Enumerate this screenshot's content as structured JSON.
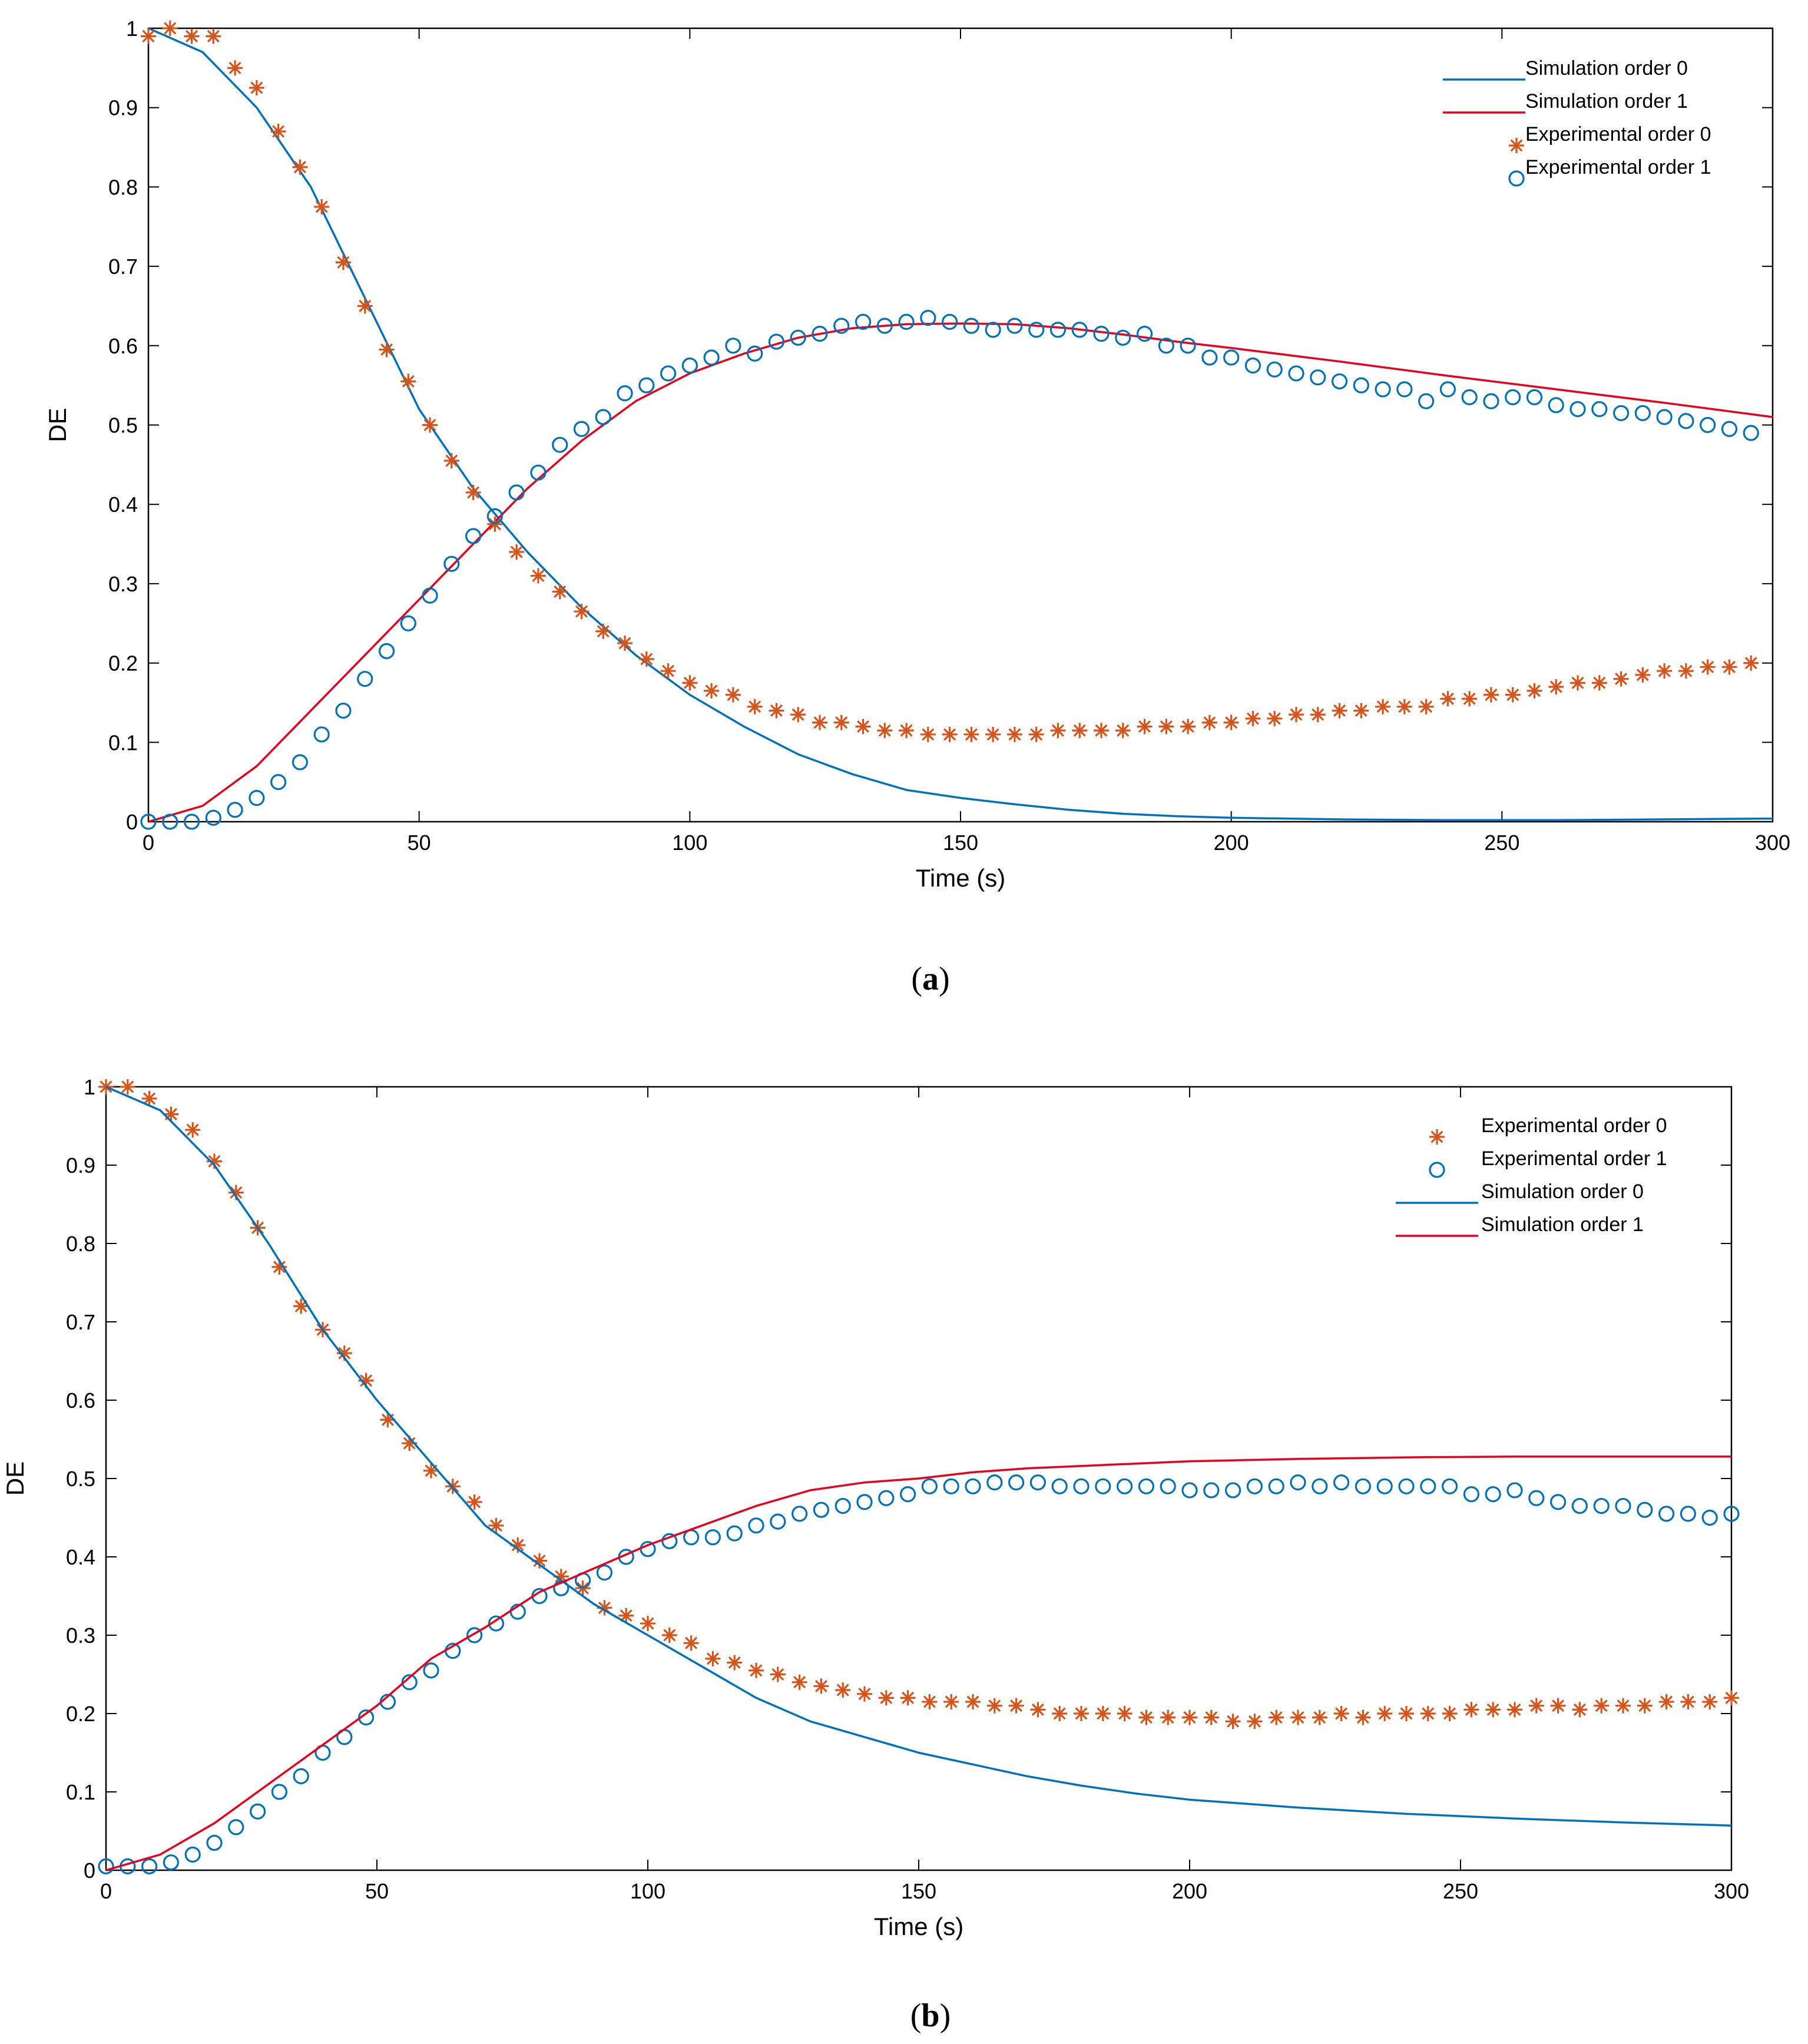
{
  "chart_data": [
    {
      "type": "line",
      "panel": "a",
      "xlabel": "Time (s)",
      "ylabel": "DE",
      "xlim": [
        0,
        300
      ],
      "ylim": [
        0,
        1
      ],
      "xticks": [
        0,
        50,
        100,
        150,
        200,
        250,
        300
      ],
      "yticks": [
        0,
        0.1,
        0.2,
        0.3,
        0.4,
        0.5,
        0.6,
        0.7,
        0.8,
        0.9,
        1
      ],
      "legend_position": "top-right",
      "legend": [
        "Simulation order 0",
        "Simulation order 1",
        "Experimental order 0",
        "Experimental order 1"
      ],
      "series": [
        {
          "name": "Simulation order 0",
          "style": "line",
          "color": "#0072BD",
          "x": [
            0,
            10,
            20,
            30,
            40,
            50,
            60,
            70,
            80,
            90,
            100,
            110,
            120,
            130,
            140,
            150,
            160,
            170,
            180,
            190,
            200,
            220,
            240,
            260,
            280,
            300
          ],
          "y": [
            1.0,
            0.97,
            0.9,
            0.8,
            0.66,
            0.52,
            0.42,
            0.34,
            0.27,
            0.21,
            0.16,
            0.12,
            0.085,
            0.06,
            0.04,
            0.03,
            0.022,
            0.015,
            0.01,
            0.007,
            0.005,
            0.003,
            0.002,
            0.002,
            0.003,
            0.004
          ]
        },
        {
          "name": "Simulation order 1",
          "style": "line",
          "color": "#E8001C",
          "x": [
            0,
            10,
            20,
            30,
            40,
            50,
            60,
            70,
            80,
            90,
            100,
            110,
            120,
            130,
            140,
            150,
            160,
            170,
            180,
            190,
            200,
            220,
            240,
            260,
            280,
            300
          ],
          "y": [
            0.0,
            0.02,
            0.07,
            0.14,
            0.21,
            0.28,
            0.35,
            0.42,
            0.48,
            0.53,
            0.565,
            0.59,
            0.61,
            0.622,
            0.627,
            0.628,
            0.627,
            0.622,
            0.614,
            0.605,
            0.597,
            0.58,
            0.562,
            0.545,
            0.528,
            0.51
          ]
        },
        {
          "name": "Experimental order 0",
          "style": "asterisk",
          "color": "#D95319",
          "x": [
            0,
            4,
            8,
            12,
            16,
            20,
            24,
            28,
            32,
            36,
            40,
            44,
            48,
            52,
            56,
            60,
            64,
            68,
            72,
            76,
            80,
            84,
            88,
            92,
            96,
            100,
            104,
            108,
            112,
            116,
            120,
            124,
            128,
            132,
            136,
            140,
            144,
            148,
            152,
            156,
            160,
            164,
            168,
            172,
            176,
            180,
            184,
            188,
            192,
            196,
            200,
            204,
            208,
            212,
            216,
            220,
            224,
            228,
            232,
            236,
            240,
            244,
            248,
            252,
            256,
            260,
            264,
            268,
            272,
            276,
            280,
            284,
            288,
            292,
            296
          ],
          "y": [
            0.99,
            1.0,
            0.99,
            0.99,
            0.95,
            0.925,
            0.87,
            0.825,
            0.775,
            0.705,
            0.65,
            0.595,
            0.555,
            0.5,
            0.455,
            0.415,
            0.375,
            0.34,
            0.31,
            0.29,
            0.265,
            0.24,
            0.225,
            0.205,
            0.19,
            0.175,
            0.165,
            0.16,
            0.145,
            0.14,
            0.135,
            0.125,
            0.125,
            0.12,
            0.115,
            0.115,
            0.11,
            0.11,
            0.11,
            0.11,
            0.11,
            0.11,
            0.115,
            0.115,
            0.115,
            0.115,
            0.12,
            0.12,
            0.12,
            0.125,
            0.125,
            0.13,
            0.13,
            0.135,
            0.135,
            0.14,
            0.14,
            0.145,
            0.145,
            0.145,
            0.155,
            0.155,
            0.16,
            0.16,
            0.165,
            0.17,
            0.175,
            0.175,
            0.18,
            0.185,
            0.19,
            0.19,
            0.195,
            0.195,
            0.2
          ]
        },
        {
          "name": "Experimental order 1",
          "style": "circle",
          "color": "#0072BD",
          "x": [
            0,
            4,
            8,
            12,
            16,
            20,
            24,
            28,
            32,
            36,
            40,
            44,
            48,
            52,
            56,
            60,
            64,
            68,
            72,
            76,
            80,
            84,
            88,
            92,
            96,
            100,
            104,
            108,
            112,
            116,
            120,
            124,
            128,
            132,
            136,
            140,
            144,
            148,
            152,
            156,
            160,
            164,
            168,
            172,
            176,
            180,
            184,
            188,
            192,
            196,
            200,
            204,
            208,
            212,
            216,
            220,
            224,
            228,
            232,
            236,
            240,
            244,
            248,
            252,
            256,
            260,
            264,
            268,
            272,
            276,
            280,
            284,
            288,
            292,
            296
          ],
          "y": [
            0.0,
            0.0,
            0.0,
            0.005,
            0.015,
            0.03,
            0.05,
            0.075,
            0.11,
            0.14,
            0.18,
            0.215,
            0.25,
            0.285,
            0.325,
            0.36,
            0.385,
            0.415,
            0.44,
            0.475,
            0.495,
            0.51,
            0.54,
            0.55,
            0.565,
            0.575,
            0.585,
            0.6,
            0.59,
            0.605,
            0.61,
            0.615,
            0.625,
            0.63,
            0.625,
            0.63,
            0.635,
            0.63,
            0.625,
            0.62,
            0.625,
            0.62,
            0.62,
            0.62,
            0.615,
            0.61,
            0.615,
            0.6,
            0.6,
            0.585,
            0.585,
            0.575,
            0.57,
            0.565,
            0.56,
            0.555,
            0.55,
            0.545,
            0.545,
            0.53,
            0.545,
            0.535,
            0.53,
            0.535,
            0.535,
            0.525,
            0.52,
            0.52,
            0.515,
            0.515,
            0.51,
            0.505,
            0.5,
            0.495,
            0.49
          ]
        }
      ]
    },
    {
      "type": "line",
      "panel": "b",
      "xlabel": "Time (s)",
      "ylabel": "DE",
      "xlim": [
        0,
        300
      ],
      "ylim": [
        0,
        1
      ],
      "xticks": [
        0,
        50,
        100,
        150,
        200,
        250,
        300
      ],
      "yticks": [
        0,
        0.1,
        0.2,
        0.3,
        0.4,
        0.5,
        0.6,
        0.7,
        0.8,
        0.9,
        1
      ],
      "legend_position": "top-right",
      "legend": [
        "Experimental order 0",
        "Experimental order 1",
        "Simulation order 0",
        "Simulation order 1"
      ],
      "series": [
        {
          "name": "Experimental order 0",
          "style": "asterisk",
          "color": "#D95319",
          "x": [
            0,
            4,
            8,
            12,
            16,
            20,
            24,
            28,
            32,
            36,
            40,
            44,
            48,
            52,
            56,
            60,
            64,
            68,
            72,
            76,
            80,
            84,
            88,
            92,
            96,
            100,
            104,
            108,
            112,
            116,
            120,
            124,
            128,
            132,
            136,
            140,
            144,
            148,
            152,
            156,
            160,
            164,
            168,
            172,
            176,
            180,
            184,
            188,
            192,
            196,
            200,
            204,
            208,
            212,
            216,
            220,
            224,
            228,
            232,
            236,
            240,
            244,
            248,
            252,
            256,
            260,
            264,
            268,
            272,
            276,
            280,
            284,
            288,
            292,
            296,
            300
          ],
          "y": [
            1.0,
            1.0,
            0.985,
            0.965,
            0.945,
            0.905,
            0.865,
            0.82,
            0.77,
            0.72,
            0.69,
            0.66,
            0.625,
            0.575,
            0.545,
            0.51,
            0.49,
            0.47,
            0.44,
            0.415,
            0.395,
            0.375,
            0.36,
            0.335,
            0.325,
            0.315,
            0.3,
            0.29,
            0.27,
            0.265,
            0.255,
            0.25,
            0.24,
            0.235,
            0.23,
            0.225,
            0.22,
            0.22,
            0.215,
            0.215,
            0.215,
            0.21,
            0.21,
            0.205,
            0.2,
            0.2,
            0.2,
            0.2,
            0.195,
            0.195,
            0.195,
            0.195,
            0.19,
            0.19,
            0.195,
            0.195,
            0.195,
            0.2,
            0.195,
            0.2,
            0.2,
            0.2,
            0.2,
            0.205,
            0.205,
            0.205,
            0.21,
            0.21,
            0.205,
            0.21,
            0.21,
            0.21,
            0.215,
            0.215,
            0.215,
            0.22
          ]
        },
        {
          "name": "Experimental order 1",
          "style": "circle",
          "color": "#0072BD",
          "x": [
            0,
            4,
            8,
            12,
            16,
            20,
            24,
            28,
            32,
            36,
            40,
            44,
            48,
            52,
            56,
            60,
            64,
            68,
            72,
            76,
            80,
            84,
            88,
            92,
            96,
            100,
            104,
            108,
            112,
            116,
            120,
            124,
            128,
            132,
            136,
            140,
            144,
            148,
            152,
            156,
            160,
            164,
            168,
            172,
            176,
            180,
            184,
            188,
            192,
            196,
            200,
            204,
            208,
            212,
            216,
            220,
            224,
            228,
            232,
            236,
            240,
            244,
            248,
            252,
            256,
            260,
            264,
            268,
            272,
            276,
            280,
            284,
            288,
            292,
            296,
            300
          ],
          "y": [
            0.005,
            0.005,
            0.005,
            0.01,
            0.02,
            0.035,
            0.055,
            0.075,
            0.1,
            0.12,
            0.15,
            0.17,
            0.195,
            0.215,
            0.24,
            0.255,
            0.28,
            0.3,
            0.315,
            0.33,
            0.35,
            0.36,
            0.37,
            0.38,
            0.4,
            0.41,
            0.42,
            0.425,
            0.425,
            0.43,
            0.44,
            0.445,
            0.455,
            0.46,
            0.465,
            0.47,
            0.475,
            0.48,
            0.49,
            0.49,
            0.49,
            0.495,
            0.495,
            0.495,
            0.49,
            0.49,
            0.49,
            0.49,
            0.49,
            0.49,
            0.485,
            0.485,
            0.485,
            0.49,
            0.49,
            0.495,
            0.49,
            0.495,
            0.49,
            0.49,
            0.49,
            0.49,
            0.49,
            0.48,
            0.48,
            0.485,
            0.475,
            0.47,
            0.465,
            0.465,
            0.465,
            0.46,
            0.455,
            0.455,
            0.45,
            0.455
          ]
        },
        {
          "name": "Simulation order 0",
          "style": "line",
          "color": "#0072BD",
          "x": [
            0,
            10,
            20,
            30,
            40,
            50,
            60,
            70,
            80,
            90,
            100,
            110,
            120,
            130,
            140,
            150,
            160,
            170,
            180,
            190,
            200,
            220,
            240,
            260,
            280,
            300
          ],
          "y": [
            1.0,
            0.97,
            0.9,
            0.8,
            0.69,
            0.6,
            0.52,
            0.44,
            0.39,
            0.34,
            0.3,
            0.26,
            0.22,
            0.19,
            0.17,
            0.15,
            0.135,
            0.12,
            0.108,
            0.098,
            0.09,
            0.08,
            0.072,
            0.066,
            0.061,
            0.057
          ]
        },
        {
          "name": "Simulation order 1",
          "style": "line",
          "color": "#E8001C",
          "x": [
            0,
            10,
            20,
            30,
            40,
            50,
            60,
            70,
            80,
            90,
            100,
            110,
            120,
            130,
            140,
            150,
            160,
            170,
            180,
            190,
            200,
            220,
            240,
            260,
            280,
            300
          ],
          "y": [
            0.0,
            0.02,
            0.06,
            0.11,
            0.16,
            0.21,
            0.27,
            0.31,
            0.355,
            0.385,
            0.415,
            0.44,
            0.465,
            0.485,
            0.495,
            0.5,
            0.508,
            0.513,
            0.516,
            0.519,
            0.522,
            0.525,
            0.527,
            0.528,
            0.528,
            0.528
          ]
        }
      ]
    }
  ],
  "panels": [
    {
      "label_prefix": "(",
      "label_letter": "a",
      "label_suffix": ")"
    },
    {
      "label_prefix": "(",
      "label_letter": "b",
      "label_suffix": ")"
    }
  ],
  "colors": {
    "blue": "#0072BD",
    "red": "#E8001C",
    "orange": "#D95319",
    "axis": "#000000"
  }
}
